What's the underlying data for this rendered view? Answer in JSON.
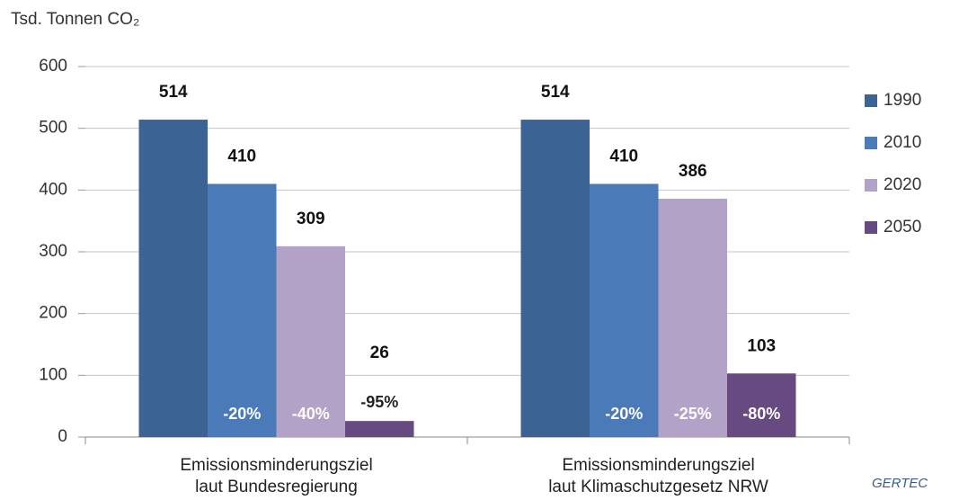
{
  "chart_data": {
    "type": "bar",
    "y_axis_label": "Tsd. Tonnen CO₂",
    "categories": [
      "Emissionsminderungsziel\nlaut Bundesregierung",
      "Emissionsminderungsziel\nlaut Klimaschutzgesetz NRW"
    ],
    "series": [
      {
        "name": "1990",
        "color": "#3b6495",
        "values": [
          514,
          514
        ]
      },
      {
        "name": "2010",
        "color": "#4a7ab8",
        "values": [
          410,
          410
        ],
        "annotations": [
          "-20%",
          "-20%"
        ]
      },
      {
        "name": "2020",
        "color": "#b3a2c8",
        "values": [
          309,
          386
        ],
        "annotations": [
          "-40%",
          "-25%"
        ]
      },
      {
        "name": "2050",
        "color": "#664a80",
        "values": [
          26,
          103
        ],
        "annotations": [
          "-95%",
          "-80%"
        ]
      }
    ],
    "ylim": [
      0,
      600
    ],
    "yticks": [
      0,
      100,
      200,
      300,
      400,
      500,
      600
    ],
    "grid": true,
    "legend": "right",
    "logo": "GERTEC"
  }
}
